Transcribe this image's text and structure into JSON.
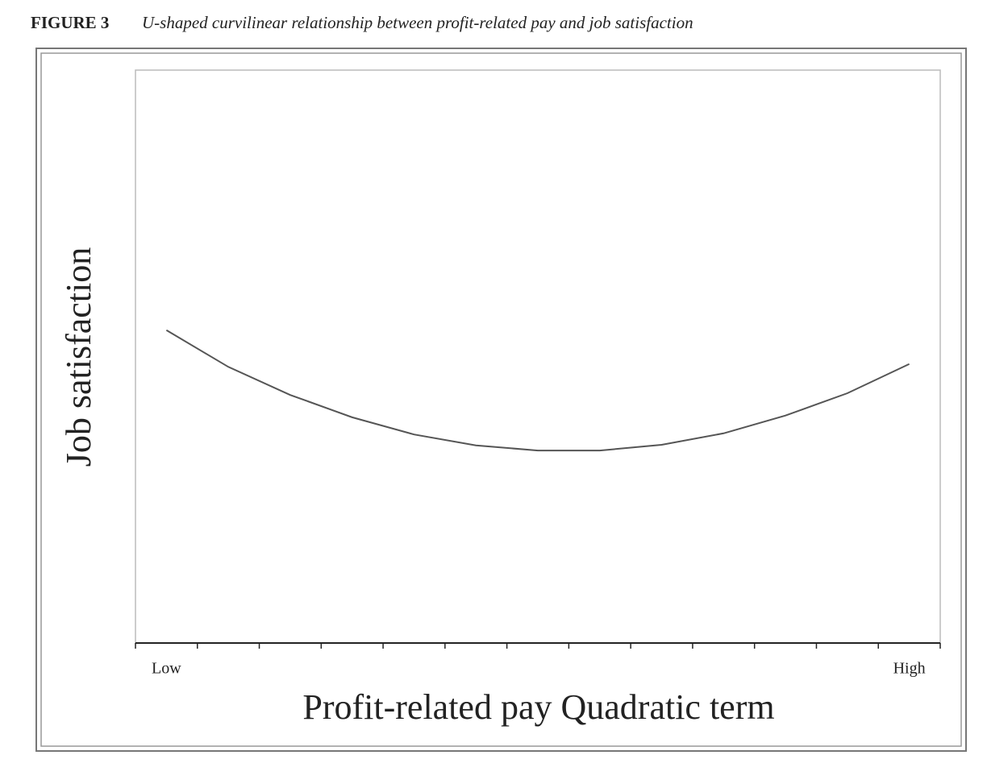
{
  "chart_data": {
    "type": "line",
    "figure_label": "FIGURE 3",
    "title": "U-shaped curvilinear relationship between profit-related pay and job satisfaction",
    "x_label": "Profit-related pay Quadratic term",
    "y_label": "Job satisfaction",
    "categories": [
      "Low",
      null,
      null,
      null,
      null,
      null,
      null,
      null,
      null,
      null,
      null,
      null,
      "High"
    ],
    "series": [
      {
        "name": "Job satisfaction",
        "color": "#555555",
        "values": [
          54.6,
          48.2,
          43.3,
          39.4,
          36.4,
          34.5,
          33.6,
          33.6,
          34.6,
          36.6,
          39.7,
          43.6,
          48.7
        ]
      }
    ],
    "ylim": [
      0,
      100
    ]
  }
}
